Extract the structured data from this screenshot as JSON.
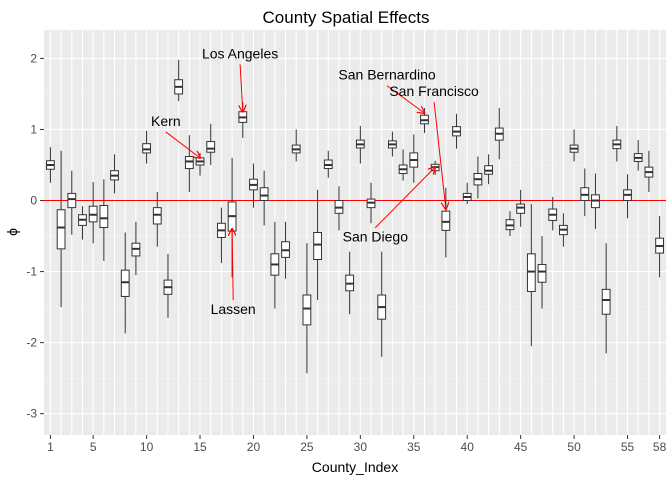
{
  "chart_data": {
    "type": "boxplot",
    "title": "County Spatial Effects",
    "xlabel": "County_Index",
    "ylabel": "ϕ",
    "xlim": [
      0.4,
      58.6
    ],
    "ylim": [
      -3.3,
      2.4
    ],
    "x_ticks": [
      1,
      5,
      10,
      15,
      20,
      25,
      30,
      35,
      40,
      45,
      50,
      55,
      58
    ],
    "y_ticks": [
      -3,
      -2,
      -1,
      0,
      1,
      2
    ],
    "reference_line": {
      "y": 0,
      "color": "#ff0000"
    },
    "grid": true,
    "boxes": [
      {
        "x": 1,
        "min": 0.25,
        "q1": 0.44,
        "median": 0.5,
        "q3": 0.56,
        "max": 0.75
      },
      {
        "x": 2,
        "min": -1.5,
        "q1": -0.68,
        "median": -0.38,
        "q3": -0.13,
        "max": 0.7
      },
      {
        "x": 3,
        "min": -0.48,
        "q1": -0.1,
        "median": 0.02,
        "q3": 0.1,
        "max": 0.42
      },
      {
        "x": 4,
        "min": -0.55,
        "q1": -0.35,
        "median": -0.27,
        "q3": -0.2,
        "max": -0.08
      },
      {
        "x": 5,
        "min": -0.6,
        "q1": -0.3,
        "median": -0.2,
        "q3": -0.08,
        "max": 0.26
      },
      {
        "x": 6,
        "min": -0.85,
        "q1": -0.38,
        "median": -0.25,
        "q3": -0.07,
        "max": 0.3
      },
      {
        "x": 7,
        "min": 0.1,
        "q1": 0.29,
        "median": 0.35,
        "q3": 0.42,
        "max": 0.65
      },
      {
        "x": 8,
        "min": -1.87,
        "q1": -1.35,
        "median": -1.15,
        "q3": -0.98,
        "max": -0.45
      },
      {
        "x": 9,
        "min": -1.05,
        "q1": -0.78,
        "median": -0.68,
        "q3": -0.6,
        "max": -0.3
      },
      {
        "x": 10,
        "min": 0.52,
        "q1": 0.67,
        "median": 0.72,
        "q3": 0.8,
        "max": 0.98
      },
      {
        "x": 11,
        "min": -0.65,
        "q1": -0.33,
        "median": -0.2,
        "q3": -0.1,
        "max": 0.12
      },
      {
        "x": 12,
        "min": -1.65,
        "q1": -1.32,
        "median": -1.22,
        "q3": -1.12,
        "max": -0.75
      },
      {
        "x": 13,
        "min": 1.4,
        "q1": 1.5,
        "median": 1.6,
        "q3": 1.7,
        "max": 1.98
      },
      {
        "x": 14,
        "min": 0.12,
        "q1": 0.45,
        "median": 0.55,
        "q3": 0.62,
        "max": 0.92
      },
      {
        "x": 15,
        "min": 0.35,
        "q1": 0.5,
        "median": 0.55,
        "q3": 0.6,
        "max": 0.67
      },
      {
        "x": 16,
        "min": 0.5,
        "q1": 0.68,
        "median": 0.73,
        "q3": 0.83,
        "max": 1.08
      },
      {
        "x": 17,
        "min": -0.88,
        "q1": -0.52,
        "median": -0.42,
        "q3": -0.32,
        "max": -0.1
      },
      {
        "x": 18,
        "min": -1.08,
        "q1": -0.43,
        "median": -0.22,
        "q3": -0.02,
        "max": 0.6
      },
      {
        "x": 19,
        "min": 0.88,
        "q1": 1.1,
        "median": 1.17,
        "q3": 1.25,
        "max": 1.38
      },
      {
        "x": 20,
        "min": -0.1,
        "q1": 0.15,
        "median": 0.22,
        "q3": 0.3,
        "max": 0.52
      },
      {
        "x": 21,
        "min": -0.35,
        "q1": 0.0,
        "median": 0.07,
        "q3": 0.18,
        "max": 0.42
      },
      {
        "x": 22,
        "min": -1.52,
        "q1": -1.05,
        "median": -0.9,
        "q3": -0.75,
        "max": -0.3
      },
      {
        "x": 23,
        "min": -1.1,
        "q1": -0.8,
        "median": -0.7,
        "q3": -0.58,
        "max": -0.3
      },
      {
        "x": 24,
        "min": 0.55,
        "q1": 0.67,
        "median": 0.72,
        "q3": 0.78,
        "max": 1.0
      },
      {
        "x": 25,
        "min": -2.43,
        "q1": -1.75,
        "median": -1.52,
        "q3": -1.33,
        "max": -0.6
      },
      {
        "x": 26,
        "min": -1.4,
        "q1": -0.83,
        "median": -0.62,
        "q3": -0.45,
        "max": 0.15
      },
      {
        "x": 27,
        "min": 0.32,
        "q1": 0.45,
        "median": 0.5,
        "q3": 0.57,
        "max": 0.7
      },
      {
        "x": 28,
        "min": -0.42,
        "q1": -0.18,
        "median": -0.1,
        "q3": 0.0,
        "max": 0.2
      },
      {
        "x": 29,
        "min": -1.6,
        "q1": -1.27,
        "median": -1.17,
        "q3": -1.05,
        "max": -0.72
      },
      {
        "x": 30,
        "min": 0.52,
        "q1": 0.74,
        "median": 0.79,
        "q3": 0.85,
        "max": 1.05
      },
      {
        "x": 31,
        "min": -0.32,
        "q1": -0.1,
        "median": -0.03,
        "q3": 0.02,
        "max": 0.25
      },
      {
        "x": 32,
        "min": -2.2,
        "q1": -1.67,
        "median": -1.5,
        "q3": -1.33,
        "max": -0.72
      },
      {
        "x": 33,
        "min": 0.62,
        "q1": 0.74,
        "median": 0.79,
        "q3": 0.84,
        "max": 0.97
      },
      {
        "x": 34,
        "min": 0.28,
        "q1": 0.38,
        "median": 0.44,
        "q3": 0.5,
        "max": 0.72
      },
      {
        "x": 35,
        "min": 0.25,
        "q1": 0.47,
        "median": 0.57,
        "q3": 0.67,
        "max": 0.93
      },
      {
        "x": 36,
        "min": 0.95,
        "q1": 1.08,
        "median": 1.13,
        "q3": 1.2,
        "max": 1.3
      },
      {
        "x": 37,
        "min": 0.36,
        "q1": 0.42,
        "median": 0.47,
        "q3": 0.51,
        "max": 0.56
      },
      {
        "x": 38,
        "min": -0.8,
        "q1": -0.42,
        "median": -0.3,
        "q3": -0.15,
        "max": 0.18
      },
      {
        "x": 39,
        "min": 0.73,
        "q1": 0.91,
        "median": 0.97,
        "q3": 1.04,
        "max": 1.22
      },
      {
        "x": 40,
        "min": -0.05,
        "q1": 0.0,
        "median": 0.05,
        "q3": 0.1,
        "max": 0.25
      },
      {
        "x": 41,
        "min": 0.03,
        "q1": 0.22,
        "median": 0.3,
        "q3": 0.38,
        "max": 0.62
      },
      {
        "x": 42,
        "min": 0.23,
        "q1": 0.37,
        "median": 0.42,
        "q3": 0.49,
        "max": 0.65
      },
      {
        "x": 43,
        "min": 0.58,
        "q1": 0.85,
        "median": 0.94,
        "q3": 1.02,
        "max": 1.3
      },
      {
        "x": 44,
        "min": -0.5,
        "q1": -0.41,
        "median": -0.35,
        "q3": -0.27,
        "max": -0.15
      },
      {
        "x": 45,
        "min": -0.37,
        "q1": -0.18,
        "median": -0.1,
        "q3": -0.05,
        "max": 0.15
      },
      {
        "x": 46,
        "min": -2.05,
        "q1": -1.28,
        "median": -1.0,
        "q3": -0.75,
        "max": -0.05
      },
      {
        "x": 47,
        "min": -1.52,
        "q1": -1.15,
        "median": -1.0,
        "q3": -0.9,
        "max": -0.5
      },
      {
        "x": 48,
        "min": -0.42,
        "q1": -0.28,
        "median": -0.2,
        "q3": -0.12,
        "max": 0.05
      },
      {
        "x": 49,
        "min": -0.65,
        "q1": -0.48,
        "median": -0.41,
        "q3": -0.35,
        "max": -0.18
      },
      {
        "x": 50,
        "min": 0.55,
        "q1": 0.68,
        "median": 0.73,
        "q3": 0.78,
        "max": 1.0
      },
      {
        "x": 51,
        "min": -0.22,
        "q1": 0.0,
        "median": 0.08,
        "q3": 0.18,
        "max": 0.45
      },
      {
        "x": 52,
        "min": -0.4,
        "q1": -0.1,
        "median": 0.0,
        "q3": 0.08,
        "max": 0.38
      },
      {
        "x": 53,
        "min": -2.15,
        "q1": -1.6,
        "median": -1.4,
        "q3": -1.25,
        "max": -0.6
      },
      {
        "x": 54,
        "min": 0.55,
        "q1": 0.73,
        "median": 0.79,
        "q3": 0.85,
        "max": 1.05
      },
      {
        "x": 55,
        "min": -0.25,
        "q1": 0.0,
        "median": 0.08,
        "q3": 0.15,
        "max": 0.37
      },
      {
        "x": 56,
        "min": 0.42,
        "q1": 0.55,
        "median": 0.6,
        "q3": 0.66,
        "max": 0.85
      },
      {
        "x": 57,
        "min": 0.12,
        "q1": 0.33,
        "median": 0.4,
        "q3": 0.47,
        "max": 0.7
      },
      {
        "x": 58,
        "min": -1.08,
        "q1": -0.74,
        "median": -0.64,
        "q3": -0.53,
        "max": -0.22
      }
    ],
    "annotations": [
      {
        "label": "Los Angeles",
        "text_x": 18.75,
        "text_y": 2.0,
        "target_x": 19,
        "target_y": 1.25
      },
      {
        "label": "Kern",
        "text_x": 11.8,
        "text_y": 1.05,
        "target_x": 15,
        "target_y": 0.6
      },
      {
        "label": "Lassen",
        "text_x": 18.1,
        "text_y": -1.6,
        "target_x": 18,
        "target_y": -0.4
      },
      {
        "label": "San Bernardino",
        "text_x": 32.5,
        "text_y": 1.7,
        "target_x": 36,
        "target_y": 1.23
      },
      {
        "label": "San Francisco",
        "text_x": 36.9,
        "text_y": 1.47,
        "target_x": 38,
        "target_y": -0.12
      },
      {
        "label": "San Diego",
        "text_x": 31.4,
        "text_y": -0.58,
        "target_x": 37,
        "target_y": 0.47
      }
    ]
  }
}
